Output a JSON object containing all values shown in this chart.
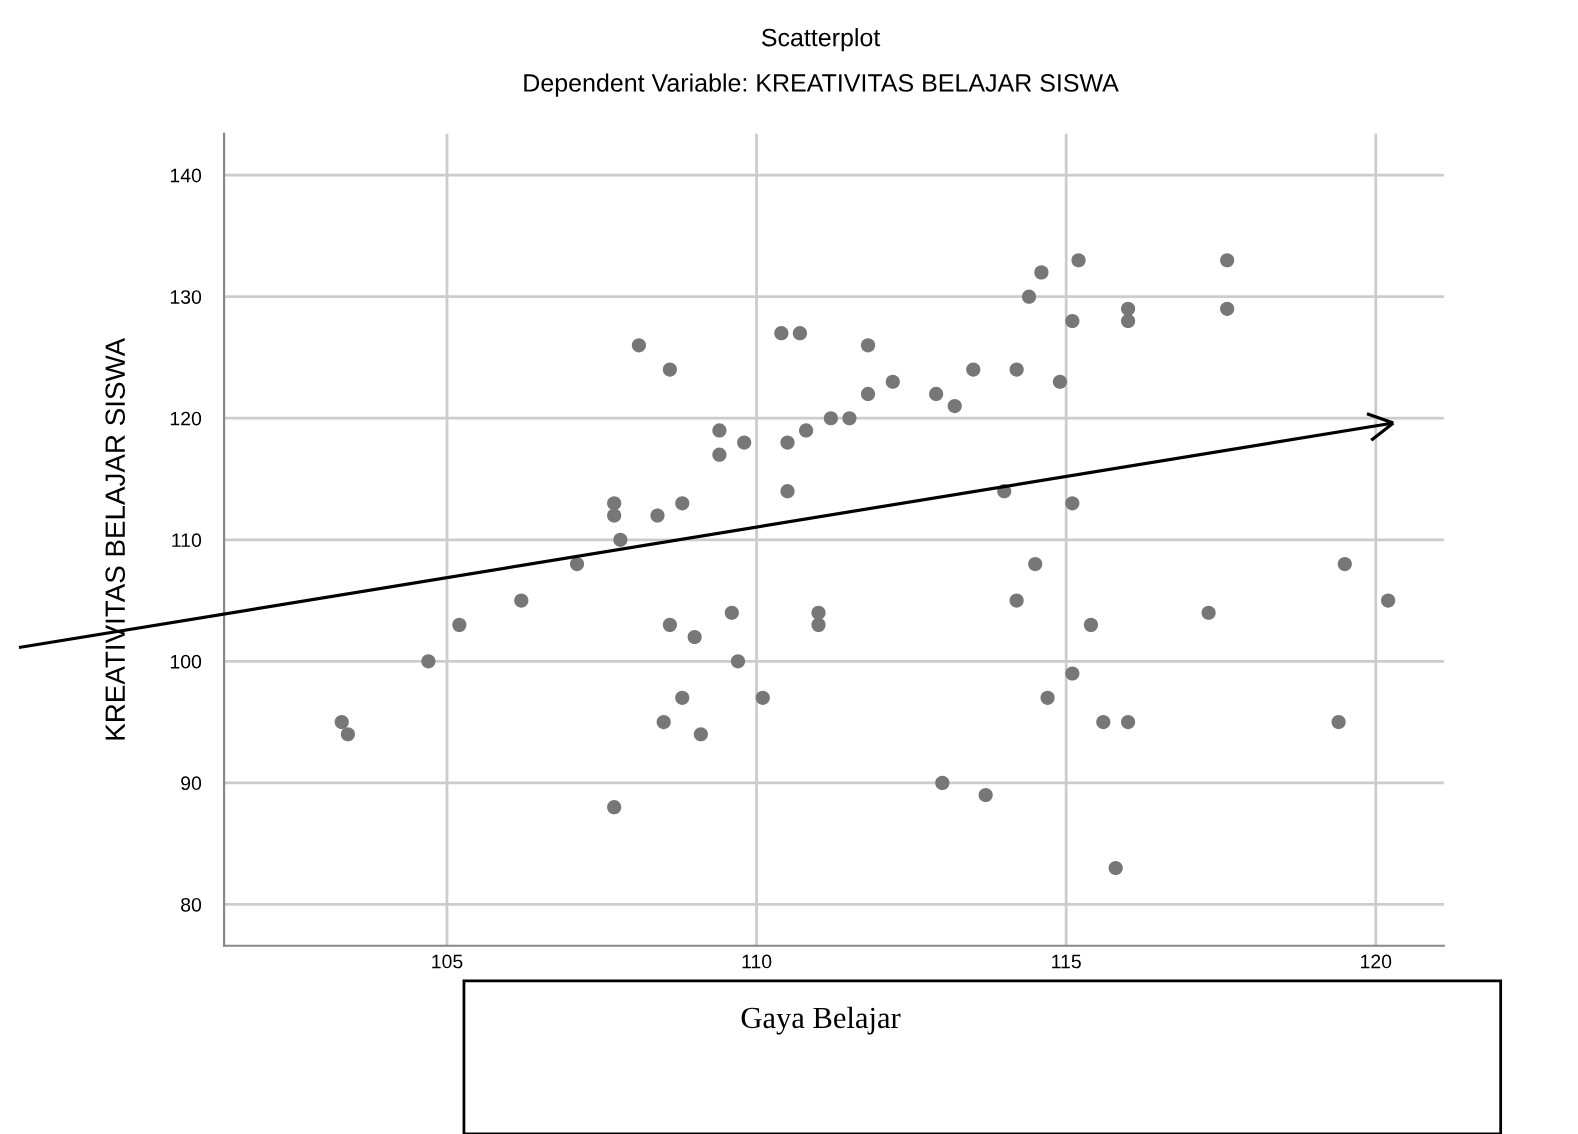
{
  "chart_data": {
    "type": "scatter",
    "title": "Scatterplot",
    "subtitle": "Dependent Variable: KREATIVITAS BELAJAR SISWA",
    "xlabel": "Gaya Belajar",
    "ylabel": "KREATIVITAS BELAJAR SISWA",
    "series": [
      {
        "color": "#777777",
        "x": [
          103.3,
          103.4,
          104.7,
          105.2,
          106.2,
          107.1,
          107.7,
          107.7,
          107.8,
          107.7,
          108.1,
          108.6,
          108.4,
          108.8,
          108.6,
          109.0,
          108.5,
          108.8,
          109.1,
          109.4,
          109.4,
          109.8,
          109.6,
          109.7,
          110.1,
          110.4,
          110.7,
          110.5,
          110.5,
          110.8,
          111.2,
          111.5,
          111.0,
          111.0,
          111.8,
          111.8,
          112.2,
          112.9,
          113.2,
          113.5,
          114.2,
          114.4,
          114.6,
          115.2,
          115.1,
          114.9,
          114.0,
          115.1,
          116.0,
          116.0,
          117.6,
          117.6,
          114.5,
          114.2,
          115.4,
          117.3,
          119.5,
          120.2,
          115.1,
          114.7,
          115.6,
          116.0,
          119.4,
          113.0,
          113.7,
          115.8
        ],
        "values": [
          95,
          94,
          100,
          103,
          105,
          108,
          113,
          112,
          110,
          88,
          126,
          124,
          112,
          113,
          103,
          102,
          95,
          97,
          94,
          119,
          117,
          118,
          104,
          100,
          97,
          127,
          127,
          118,
          114,
          119,
          120,
          120,
          104,
          103,
          126,
          122,
          123,
          122,
          121,
          124,
          124,
          130,
          132,
          133,
          128,
          123,
          114,
          113,
          129,
          128,
          129,
          133,
          108,
          105,
          103,
          104,
          108,
          105,
          99,
          97,
          95,
          95,
          95,
          90,
          89,
          83
        ]
      }
    ],
    "xlim": [
      101.4,
      121.1
    ],
    "ylim": [
      76.6,
      143.4
    ],
    "xticks": [
      105,
      110,
      115,
      120
    ],
    "yticks": [
      80,
      90,
      100,
      110,
      120,
      130,
      140
    ],
    "grid": true,
    "marker": "circle",
    "legend": false
  }
}
